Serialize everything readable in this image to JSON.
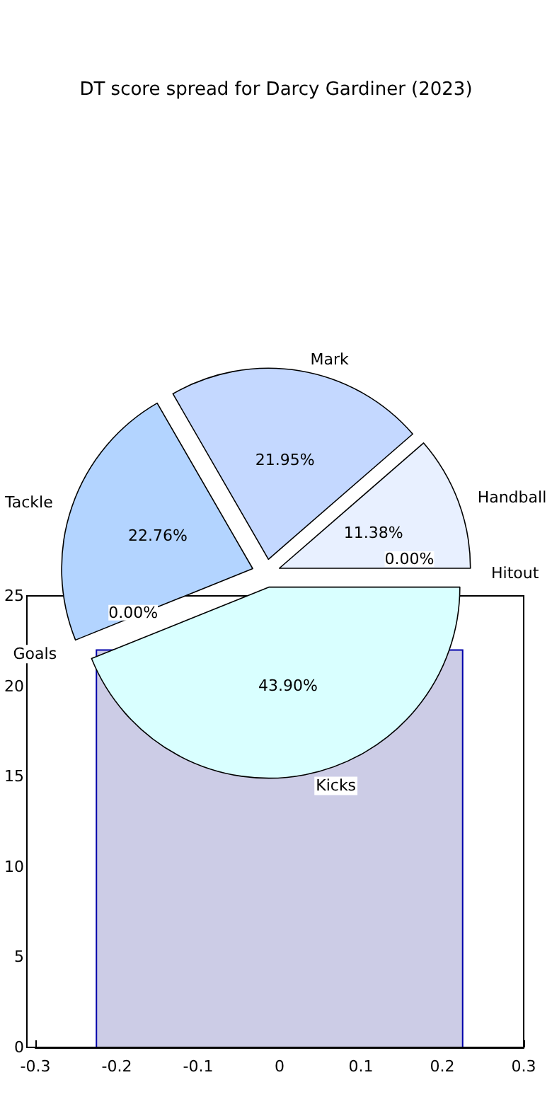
{
  "chart_data": [
    {
      "type": "pie",
      "title": "DT score spread for Darcy Gardiner (2023)",
      "categories": [
        "Hitout",
        "Handball",
        "Mark",
        "Tackle",
        "Goals",
        "Kicks"
      ],
      "values": [
        0,
        11.38,
        21.95,
        22.76,
        0,
        43.9
      ],
      "colors": [
        "#e0e0ff",
        "#e8f0ff",
        "#c4d8ff",
        "#b3d4ff",
        "#d0d0f0",
        "#d9ffff"
      ],
      "value_labels": [
        "0.00%",
        "11.38%",
        "21.95%",
        "22.76%",
        "0.00%",
        "43.90%"
      ],
      "legend": false
    },
    {
      "type": "histogram",
      "bins": [
        -0.225,
        0.225
      ],
      "values": [
        22
      ],
      "color": "#cccce6",
      "xlim": [
        -0.3,
        0.3
      ],
      "xticks": [
        -0.3,
        -0.2,
        -0.1,
        0,
        0.1,
        0.2,
        0.3
      ],
      "ylim": [
        0,
        25
      ],
      "yticks": [
        0,
        5,
        10,
        15,
        20,
        25
      ],
      "grid": false
    }
  ]
}
